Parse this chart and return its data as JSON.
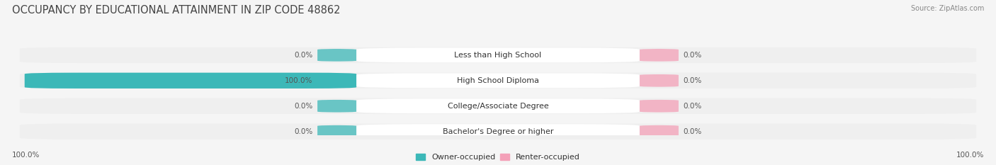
{
  "title": "OCCUPANCY BY EDUCATIONAL ATTAINMENT IN ZIP CODE 48862",
  "source": "Source: ZipAtlas.com",
  "categories": [
    "Less than High School",
    "High School Diploma",
    "College/Associate Degree",
    "Bachelor's Degree or higher"
  ],
  "owner_values": [
    0.0,
    100.0,
    0.0,
    0.0
  ],
  "renter_values": [
    0.0,
    0.0,
    0.0,
    0.0
  ],
  "owner_color": "#3cb8b8",
  "renter_color": "#f4a0b8",
  "bg_color": "#f5f5f5",
  "row_bg_color": "#e8e8e8",
  "row_bg_light": "#efefef",
  "title_fontsize": 10.5,
  "label_fontsize": 7.5,
  "category_fontsize": 8,
  "legend_fontsize": 8,
  "bottom_left_label": "100.0%",
  "bottom_right_label": "100.0%",
  "max_val": 100.0
}
